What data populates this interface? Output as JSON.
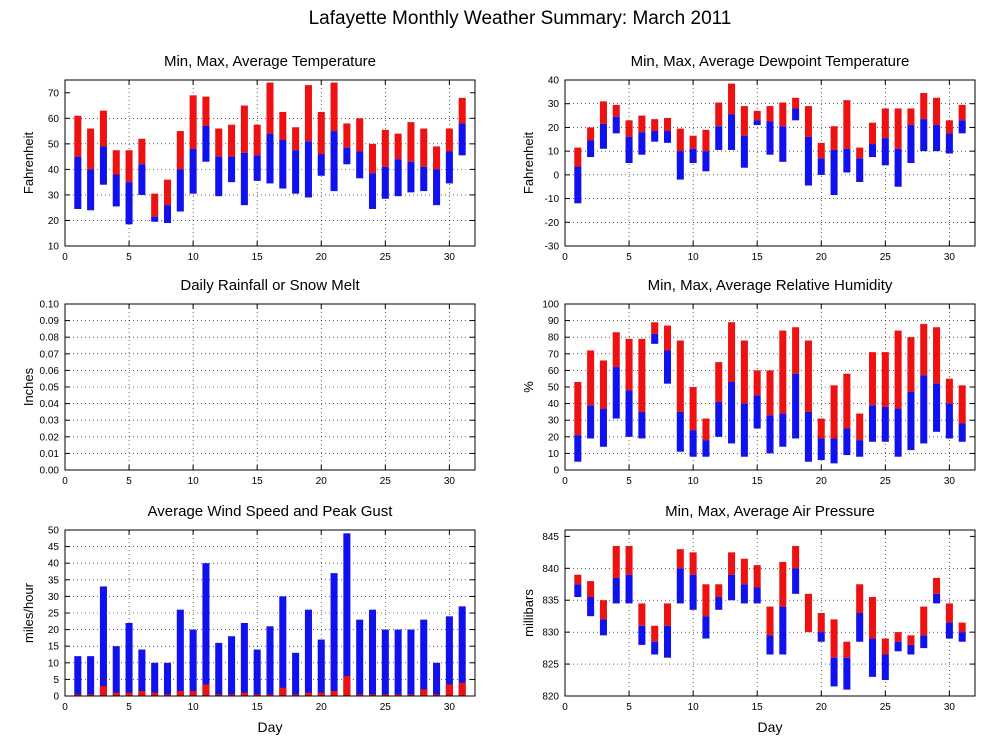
{
  "figure": {
    "title": "Lafayette Monthly Weather Summary: March 2011"
  },
  "colors": {
    "red": "#ee1111",
    "blue": "#1111ee"
  },
  "chart_data": [
    {
      "id": "temperature",
      "type": "bar",
      "title": "Min, Max, Average Temperature",
      "ylabel": "Fahrenheit",
      "xlabel": "",
      "xlim": [
        0,
        32
      ],
      "ylim": [
        10,
        75
      ],
      "xticks": [
        0,
        5,
        10,
        15,
        20,
        25,
        30
      ],
      "yticks": [
        10,
        20,
        30,
        40,
        50,
        60,
        70
      ],
      "grid": true,
      "ytick_decimals": 0,
      "days": [
        1,
        2,
        3,
        4,
        5,
        6,
        7,
        8,
        9,
        10,
        11,
        12,
        13,
        14,
        15,
        16,
        17,
        18,
        19,
        20,
        21,
        22,
        23,
        24,
        25,
        26,
        27,
        28,
        29,
        30,
        31
      ],
      "min": [
        24.5,
        24,
        34,
        25.5,
        18.5,
        30,
        19.5,
        19,
        23.5,
        30.5,
        43,
        29.5,
        35,
        26,
        35.5,
        34.5,
        32.5,
        30.5,
        29,
        37.5,
        31.5,
        42,
        36.5,
        24.5,
        28.5,
        29.5,
        31,
        31.5,
        26,
        34.5,
        45.5
      ],
      "avg": [
        45,
        40,
        49,
        38,
        35,
        42,
        21.5,
        26,
        40,
        48,
        57,
        45,
        45,
        46.5,
        45.5,
        54,
        51.5,
        47.5,
        51,
        46,
        55,
        48.5,
        47,
        38.5,
        41,
        44,
        43,
        41,
        40,
        47,
        58
      ],
      "max": [
        61,
        56,
        63,
        47.5,
        47.5,
        52,
        30.5,
        36,
        55,
        69,
        68.5,
        56,
        57.5,
        65,
        57.5,
        74,
        62.5,
        56.5,
        73,
        62.5,
        74,
        58,
        60,
        50,
        55.5,
        54,
        58.5,
        56,
        49,
        56,
        68
      ]
    },
    {
      "id": "dewpoint",
      "type": "bar",
      "title": "Min, Max, Average Dewpoint Temperature",
      "ylabel": "Fahrenheit",
      "xlabel": "",
      "xlim": [
        0,
        32
      ],
      "ylim": [
        -30,
        40
      ],
      "xticks": [
        0,
        5,
        10,
        15,
        20,
        25,
        30
      ],
      "yticks": [
        -30,
        -20,
        -10,
        0,
        10,
        20,
        30,
        40
      ],
      "grid": true,
      "ytick_decimals": 0,
      "days": [
        1,
        2,
        3,
        4,
        5,
        6,
        7,
        8,
        9,
        10,
        11,
        12,
        13,
        14,
        15,
        16,
        17,
        18,
        19,
        20,
        21,
        22,
        23,
        24,
        25,
        26,
        27,
        28,
        29,
        30,
        31
      ],
      "min": [
        -12,
        7.5,
        11,
        17.5,
        5,
        8.5,
        14,
        13.5,
        -2,
        5,
        1.5,
        10.5,
        10.5,
        3,
        21,
        8.5,
        5.5,
        23,
        -4.5,
        0,
        -8.5,
        1,
        -3,
        7.5,
        4,
        -5,
        5,
        10,
        10,
        9,
        17.5
      ],
      "avg": [
        3.5,
        14.5,
        21.5,
        24.5,
        16,
        18,
        18.5,
        18.5,
        10,
        11,
        10,
        20.5,
        25.5,
        16.5,
        23,
        22.5,
        20.5,
        28,
        16,
        7,
        10.5,
        11,
        7,
        13,
        15.5,
        11,
        21,
        23.5,
        21,
        17.5,
        23
      ],
      "max": [
        11.5,
        20,
        31,
        29.5,
        23,
        25,
        23.5,
        24,
        19.5,
        16.5,
        19,
        30.5,
        38.5,
        29,
        27,
        29,
        30.5,
        32.5,
        29,
        13.5,
        20.5,
        31.5,
        11.5,
        22,
        28,
        28,
        28,
        34.5,
        32.5,
        23,
        29.5
      ]
    },
    {
      "id": "rainfall",
      "type": "bar",
      "title": "Daily Rainfall or Snow Melt",
      "ylabel": "Inches",
      "xlabel": "",
      "xlim": [
        0,
        32
      ],
      "ylim": [
        0,
        0.1
      ],
      "xticks": [
        0,
        5,
        10,
        15,
        20,
        25,
        30
      ],
      "yticks": [
        0,
        0.01,
        0.02,
        0.03,
        0.04,
        0.05,
        0.06,
        0.07,
        0.08,
        0.09,
        0.1
      ],
      "grid": true,
      "ytick_decimals": 2,
      "days": [
        1,
        2,
        3,
        4,
        5,
        6,
        7,
        8,
        9,
        10,
        11,
        12,
        13,
        14,
        15,
        16,
        17,
        18,
        19,
        20,
        21,
        22,
        23,
        24,
        25,
        26,
        27,
        28,
        29,
        30,
        31
      ],
      "values": [
        0,
        0,
        0,
        0,
        0,
        0,
        0,
        0,
        0,
        0,
        0,
        0,
        0,
        0,
        0,
        0,
        0,
        0,
        0,
        0,
        0,
        0,
        0,
        0,
        0,
        0,
        0,
        0,
        0,
        0,
        0
      ]
    },
    {
      "id": "humidity",
      "type": "bar",
      "title": "Min, Max, Average Relative Humidity",
      "ylabel": "%",
      "xlabel": "",
      "xlim": [
        0,
        32
      ],
      "ylim": [
        0,
        100
      ],
      "xticks": [
        0,
        5,
        10,
        15,
        20,
        25,
        30
      ],
      "yticks": [
        0,
        10,
        20,
        30,
        40,
        50,
        60,
        70,
        80,
        90,
        100
      ],
      "grid": true,
      "ytick_decimals": 0,
      "days": [
        1,
        2,
        3,
        4,
        5,
        6,
        7,
        8,
        9,
        10,
        11,
        12,
        13,
        14,
        15,
        16,
        17,
        18,
        19,
        20,
        21,
        22,
        23,
        24,
        25,
        26,
        27,
        28,
        29,
        30,
        31
      ],
      "min": [
        5,
        19,
        14,
        31,
        20,
        19,
        76,
        52,
        11,
        8,
        8,
        20,
        16,
        8,
        25,
        10,
        14,
        19,
        5,
        6,
        4,
        9,
        8,
        17,
        17,
        8,
        12,
        16,
        23,
        19,
        17
      ],
      "avg": [
        21,
        39,
        37,
        62,
        48,
        35,
        82,
        72,
        35,
        24,
        18,
        41,
        53,
        40,
        45,
        33,
        34,
        58,
        35,
        19,
        19,
        25,
        18,
        39,
        38,
        37,
        47,
        57,
        52,
        40,
        28
      ],
      "max": [
        53,
        72,
        66,
        83,
        79,
        79,
        89,
        87,
        78,
        50,
        31,
        65,
        89,
        78,
        60,
        60,
        84,
        86,
        78,
        31,
        51,
        58,
        34,
        71,
        71,
        84,
        80,
        88,
        86,
        55,
        51
      ]
    },
    {
      "id": "wind",
      "type": "bar",
      "title": "Average Wind Speed and Peak Gust",
      "ylabel": "miles/hour",
      "xlabel": "Day",
      "xlim": [
        0,
        32
      ],
      "ylim": [
        0,
        50
      ],
      "xticks": [
        0,
        5,
        10,
        15,
        20,
        25,
        30
      ],
      "yticks": [
        0,
        5,
        10,
        15,
        20,
        25,
        30,
        35,
        40,
        45,
        50
      ],
      "grid": true,
      "ytick_decimals": 0,
      "days": [
        1,
        2,
        3,
        4,
        5,
        6,
        7,
        8,
        9,
        10,
        11,
        12,
        13,
        14,
        15,
        16,
        17,
        18,
        19,
        20,
        21,
        22,
        23,
        24,
        25,
        26,
        27,
        28,
        29,
        30,
        31
      ],
      "avg": [
        0.5,
        0.5,
        3,
        1,
        1,
        1.5,
        1,
        0.5,
        1.5,
        1.5,
        3.5,
        0.5,
        0.5,
        1,
        0.5,
        0.5,
        2.5,
        0.5,
        1,
        1,
        1.5,
        6,
        0.5,
        0.5,
        0.5,
        0.5,
        0.5,
        2,
        0.5,
        3.5,
        4
      ],
      "gust": [
        12,
        12,
        33,
        15,
        22,
        14,
        10,
        10,
        26,
        20,
        40,
        16,
        18,
        22,
        14,
        21,
        30,
        13,
        26,
        17,
        37,
        49,
        23,
        26,
        20,
        20,
        20,
        23,
        10,
        24,
        27
      ]
    },
    {
      "id": "pressure",
      "type": "bar",
      "title": "Min, Max, Average Air Pressure",
      "ylabel": "millibars",
      "xlabel": "Day",
      "xlim": [
        0,
        32
      ],
      "ylim": [
        820,
        846
      ],
      "xticks": [
        0,
        5,
        10,
        15,
        20,
        25,
        30
      ],
      "yticks": [
        820,
        825,
        830,
        835,
        840,
        845
      ],
      "grid": true,
      "ytick_decimals": 0,
      "days": [
        1,
        2,
        3,
        4,
        5,
        6,
        7,
        8,
        9,
        10,
        11,
        12,
        13,
        14,
        15,
        16,
        17,
        18,
        19,
        20,
        21,
        22,
        23,
        24,
        25,
        26,
        27,
        28,
        29,
        30,
        31
      ],
      "min": [
        835.5,
        832.5,
        829.5,
        834.5,
        834.5,
        828,
        826.5,
        826,
        834.5,
        833.5,
        829,
        833.5,
        835,
        834.5,
        834.5,
        826.5,
        826.5,
        836,
        830,
        828.5,
        821.5,
        821,
        828.5,
        823,
        822.5,
        827,
        826.5,
        827.5,
        834.5,
        829,
        828.5
      ],
      "avg": [
        837.5,
        835.5,
        832,
        838.5,
        839,
        831,
        828.5,
        831,
        840,
        839,
        832.5,
        835.5,
        839,
        837.5,
        837,
        829.5,
        834,
        840,
        830,
        830,
        826,
        826,
        833,
        829,
        826.5,
        828.5,
        828,
        829.5,
        836,
        831.5,
        830
      ],
      "max": [
        839,
        838,
        835,
        843.5,
        843.5,
        834.5,
        831,
        834.5,
        843,
        842.5,
        837.5,
        837.5,
        842.5,
        841.5,
        840.5,
        834,
        841,
        843.5,
        836,
        833,
        832,
        828.5,
        837.5,
        835.5,
        829,
        830,
        829.5,
        834,
        838.5,
        834.5,
        831.5
      ]
    }
  ]
}
